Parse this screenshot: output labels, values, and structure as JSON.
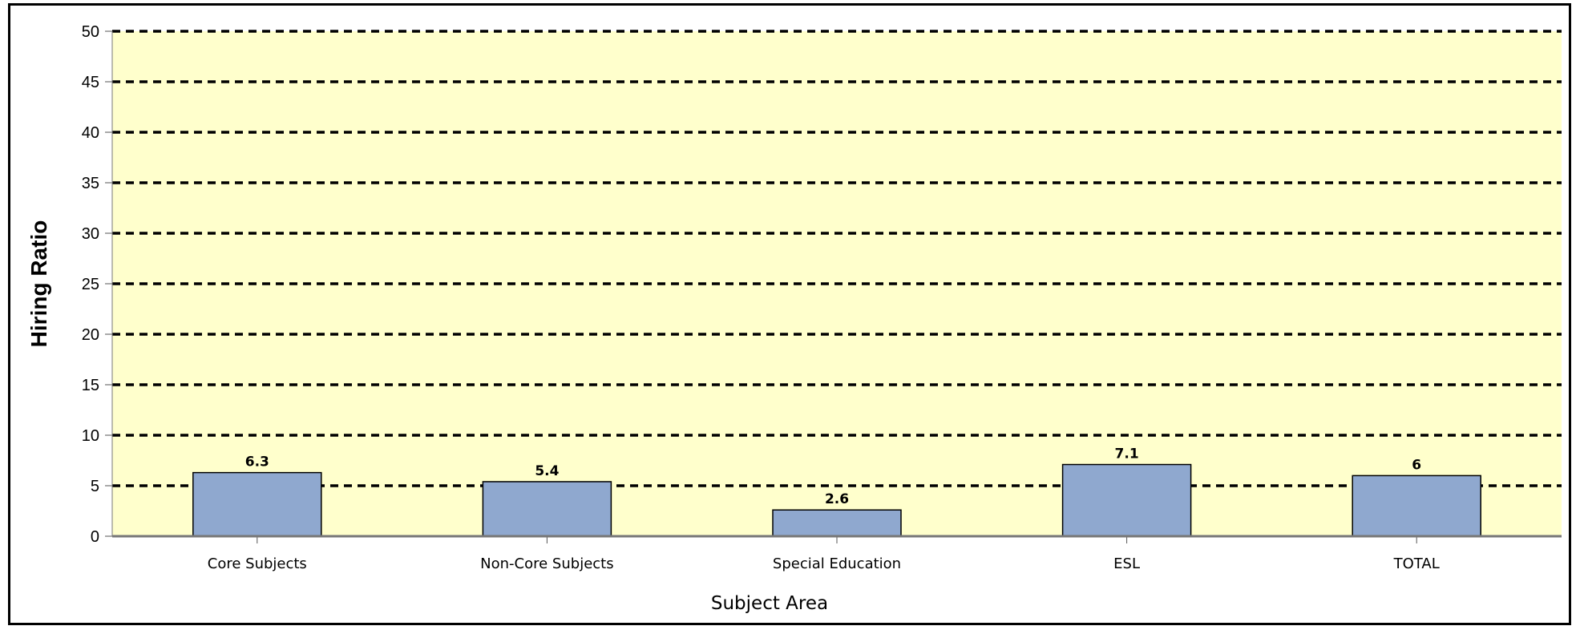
{
  "chart_data": {
    "type": "bar",
    "title": "",
    "xlabel": "Subject Area",
    "ylabel": "Hiring Ratio",
    "categories": [
      "Core Subjects",
      "Non-Core Subjects",
      "Special Education",
      "ESL",
      "TOTAL"
    ],
    "values": [
      6.3,
      5.4,
      2.6,
      7.1,
      6
    ],
    "data_labels": [
      "6.3",
      "5.4",
      "2.6",
      "7.1",
      "6"
    ],
    "ylim": [
      0,
      50
    ],
    "yticks": [
      0,
      5,
      10,
      15,
      20,
      25,
      30,
      35,
      40,
      45,
      50
    ],
    "grid": true,
    "grid_style": "dashed",
    "colors": {
      "plot_background": "#ffffcc",
      "bar_fill": "#8fa8cf",
      "bar_stroke": "#000000",
      "grid": "#000000"
    }
  }
}
